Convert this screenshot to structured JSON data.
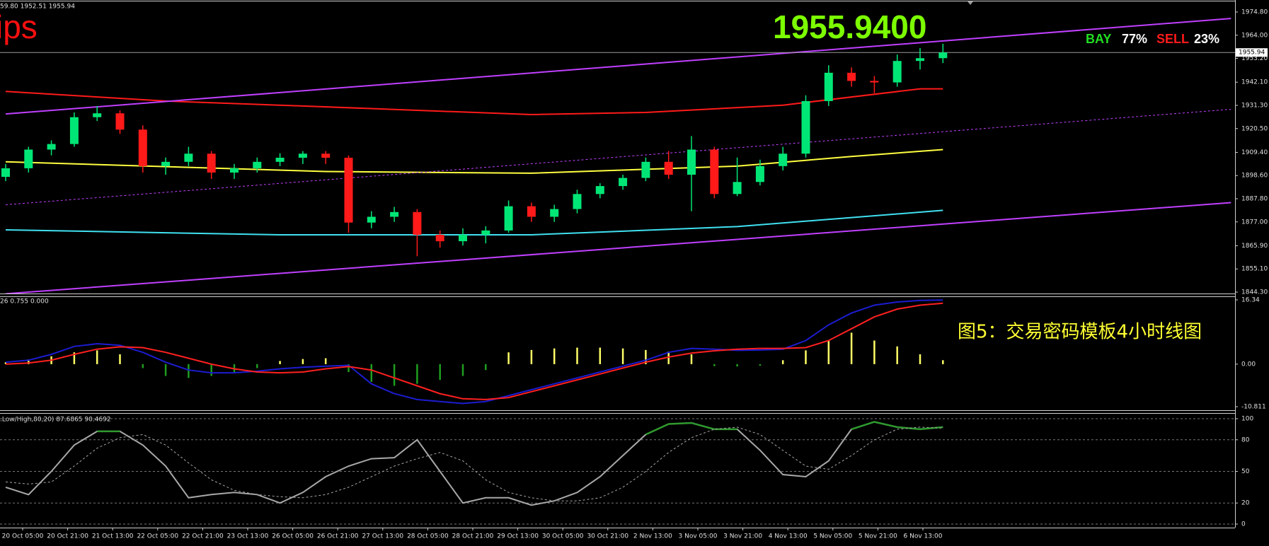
{
  "chart_data": [
    {
      "type": "candlestick",
      "header": "59.80 1952.51 1955.94",
      "title": "ips",
      "price": "1955.9400",
      "bay_label": "BAY",
      "bay_pct": "77%",
      "sell_label": "SELL",
      "sell_pct": "23%",
      "current": 1955.94,
      "current_label": "1955.94",
      "ylim": [
        1844.3,
        1974.8
      ],
      "yticks": [
        {
          "value": 1844.3,
          "label": "1844.30"
        },
        {
          "value": 1855.1,
          "label": "1855.10"
        },
        {
          "value": 1865.9,
          "label": "1865.90"
        },
        {
          "value": 1877,
          "label": "1877.00"
        },
        {
          "value": 1887.8,
          "label": "1887.80"
        },
        {
          "value": 1898.6,
          "label": "1898.60"
        },
        {
          "value": 1909.4,
          "label": "1909.40"
        },
        {
          "value": 1920.5,
          "label": "1920.50"
        },
        {
          "value": 1931.3,
          "label": "1931.30"
        },
        {
          "value": 1942.1,
          "label": "1942.10"
        },
        {
          "value": 1953.2,
          "label": "1953.20"
        },
        {
          "value": 1964,
          "label": "1964.00"
        },
        {
          "value": 1974.8,
          "label": "1974.80"
        }
      ],
      "up_color": "#00e676",
      "down_color": "#ff1a1a",
      "candles": {
        "open": [
          1898,
          1902,
          1910.7,
          1913.3,
          1925.8,
          1927.6,
          1920,
          1903,
          1905,
          1908.8,
          1900,
          1902,
          1905,
          1906.9,
          1908.8,
          1906.9,
          1876.7,
          1879.4,
          1881.6,
          1871,
          1868,
          1871,
          1873,
          1884.3,
          1879.4,
          1883,
          1890,
          1893.7,
          1897.5,
          1905,
          1899,
          1910.7,
          1890,
          1895.6,
          1903,
          1908.8,
          1933.3,
          1946.5,
          1942.7,
          1942,
          1952,
          1953.3
        ],
        "high": [
          1904,
          1912,
          1915,
          1928,
          1931,
          1929,
          1922,
          1907,
          1912,
          1910,
          1904,
          1907,
          1909,
          1910,
          1910,
          1908,
          1882,
          1884,
          1883,
          1873,
          1874,
          1875,
          1887,
          1886,
          1885,
          1892,
          1895,
          1899,
          1907,
          1910,
          1917,
          1912,
          1907,
          1906,
          1912,
          1936,
          1950,
          1949,
          1945,
          1955,
          1958,
          1960
        ],
        "low": [
          1896,
          1900,
          1908,
          1912,
          1924,
          1918,
          1900,
          1899,
          1903,
          1897,
          1897,
          1900,
          1903,
          1904,
          1904,
          1872,
          1874,
          1877,
          1861,
          1865,
          1866,
          1867,
          1872,
          1877,
          1877,
          1881,
          1888,
          1892,
          1896,
          1897,
          1882,
          1888,
          1889,
          1894,
          1901,
          1907,
          1931,
          1940,
          1937,
          1940,
          1948,
          1951
        ],
        "close": [
          1902,
          1910.7,
          1913.3,
          1925.8,
          1927.6,
          1920,
          1903,
          1905,
          1908.8,
          1900,
          1902,
          1905,
          1906.9,
          1908.8,
          1906.9,
          1876.7,
          1879.4,
          1881.6,
          1871,
          1868,
          1871,
          1873,
          1884.3,
          1879.4,
          1883,
          1890,
          1893.7,
          1897.5,
          1905,
          1899,
          1910.7,
          1890,
          1895.6,
          1903,
          1908.8,
          1933.3,
          1946.5,
          1942.7,
          1942,
          1952,
          1953.3,
          1955.94
        ]
      },
      "lines": [
        {
          "color": "#ff1a1a",
          "x": [
            0,
            7,
            13,
            23,
            28,
            34,
            40,
            41
          ],
          "values": [
            1937.8,
            1933.3,
            1931,
            1927,
            1928,
            1931.4,
            1939,
            1939
          ]
        },
        {
          "color": "#ffff40",
          "x": [
            0,
            14,
            23,
            32,
            37,
            41
          ],
          "values": [
            1905,
            1900.5,
            1899.7,
            1903,
            1907.5,
            1910.7
          ]
        },
        {
          "color": "#40e0f0",
          "x": [
            0,
            12,
            23,
            32,
            41
          ],
          "values": [
            1873.3,
            1871,
            1871,
            1874.8,
            1882.4
          ]
        },
        {
          "color": "#c040ff",
          "x": [
            0,
            53.6
          ],
          "values": [
            1927.3,
            1971.8
          ]
        },
        {
          "color": "#c040ff",
          "dash": true,
          "x": [
            0,
            53.6
          ],
          "values": [
            1885,
            1929.5
          ]
        },
        {
          "color": "#c040ff",
          "x": [
            0,
            53.6
          ],
          "values": [
            1843.5,
            1886
          ]
        }
      ]
    },
    {
      "type": "macd",
      "header": "26 0.755 0.000",
      "annotation": "图5：交易密码模板4小时线图",
      "ylim": [
        -10.811,
        16.34
      ],
      "yticks": [
        -10.811,
        {
          "value": 0,
          "label": "0.00"
        },
        16.34
      ],
      "up_color": "#ffff66",
      "down_color": "#1f9e1f",
      "histogram": [
        0.5,
        1.2,
        2,
        3,
        3.5,
        2.5,
        -1,
        -3,
        -3.5,
        -3,
        -2,
        -1,
        0.8,
        1.3,
        1.5,
        -2,
        -4.5,
        -5.5,
        -5,
        -4,
        -3,
        -1.5,
        3,
        3.6,
        4,
        4.2,
        4.2,
        4,
        3.6,
        3.2,
        2.5,
        -0.5,
        -0.6,
        -0.4,
        1,
        3.5,
        6,
        8,
        6,
        4.5,
        2.5,
        1
      ],
      "series": [
        {
          "color": "#1c1cd0",
          "values": [
            0.5,
            1,
            2.5,
            4.5,
            5.2,
            4.8,
            3,
            0.5,
            -1.5,
            -2.2,
            -2.2,
            -1.8,
            -1.2,
            -0.8,
            -0.5,
            -0.3,
            -5,
            -7.5,
            -9,
            -9.5,
            -10,
            -9.5,
            -8,
            -6.5,
            -5,
            -3.5,
            -2,
            -0.5,
            1,
            3,
            4,
            3.8,
            3.5,
            3.6,
            3.8,
            6,
            10,
            13,
            15,
            15.8,
            16.2,
            16.3
          ]
        },
        {
          "color": "#ff2020",
          "values": [
            0,
            0.3,
            1,
            2.5,
            3.8,
            4.4,
            4.2,
            3,
            1.5,
            0,
            -1.2,
            -2,
            -2.2,
            -2,
            -1.2,
            -0.6,
            -1.5,
            -3.5,
            -5.5,
            -7.5,
            -8.8,
            -9,
            -8.5,
            -7,
            -5.5,
            -4,
            -2.5,
            -1,
            0.5,
            1.8,
            2.8,
            3.4,
            3.8,
            4,
            4,
            4.2,
            6,
            9,
            12,
            14,
            15,
            15.5
          ]
        }
      ]
    },
    {
      "type": "stochastic",
      "header": ".Low/High,80,20) 87.6865 90.4692",
      "ylim": [
        0,
        100
      ],
      "yticks": [
        0,
        20,
        50,
        80,
        100
      ],
      "grid": true,
      "up_color": "#2e9a2e",
      "down_color": "#e01010",
      "series": [
        {
          "color": "#a8a8a8",
          "values": [
            35,
            28,
            50,
            75,
            88,
            88,
            75,
            55,
            25,
            28,
            30,
            28,
            20,
            30,
            45,
            55,
            62,
            63,
            80,
            50,
            20,
            25,
            25,
            18,
            22,
            30,
            45,
            65,
            85,
            95,
            96,
            90,
            90,
            70,
            47,
            45,
            60,
            90,
            97,
            92,
            90,
            92
          ]
        },
        {
          "color": "#a8a8a8",
          "dash": true,
          "values": [
            40,
            38,
            40,
            55,
            72,
            82,
            85,
            75,
            58,
            42,
            32,
            28,
            26,
            25,
            28,
            35,
            45,
            55,
            62,
            68,
            60,
            42,
            30,
            25,
            22,
            22,
            25,
            35,
            50,
            68,
            82,
            90,
            92,
            85,
            70,
            55,
            52,
            65,
            80,
            90,
            92,
            91
          ]
        }
      ]
    }
  ],
  "time_labels": [
    "20 Oct 05:00",
    "20 Oct 21:00",
    "21 Oct 13:00",
    "22 Oct 05:00",
    "22 Oct 21:00",
    "23 Oct 13:00",
    "26 Oct 05:00",
    "26 Oct 21:00",
    "27 Oct 13:00",
    "28 Oct 05:00",
    "28 Oct 21:00",
    "29 Oct 13:00",
    "30 Oct 05:00",
    "30 Oct 21:00",
    "2 Nov 13:00",
    "3 Nov 05:00",
    "3 Nov 21:00",
    "4 Nov 13:00",
    "5 Nov 05:00",
    "5 Nov 21:00",
    "6 Nov 13:00"
  ]
}
